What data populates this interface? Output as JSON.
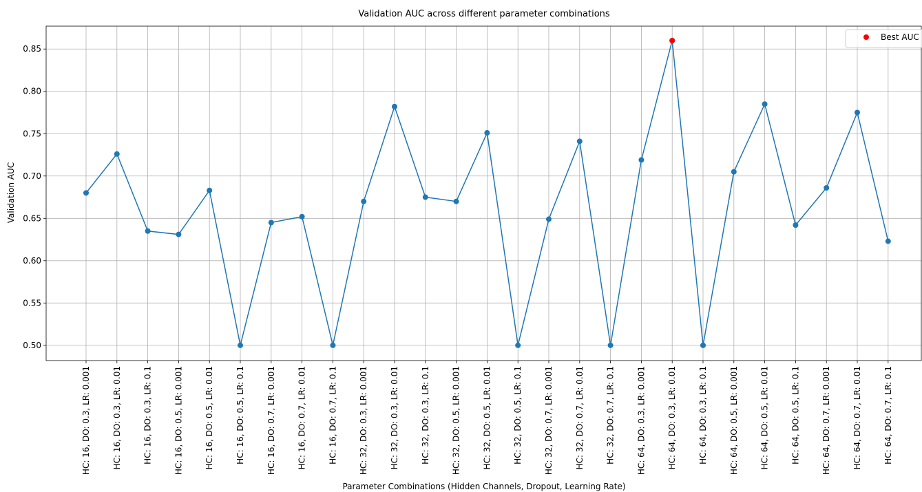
{
  "chart_data": {
    "type": "line",
    "title": "Validation AUC across different parameter combinations",
    "xlabel": "Parameter Combinations (Hidden Channels, Dropout, Learning Rate)",
    "ylabel": "Validation AUC",
    "categories": [
      "HC: 16, DO: 0.3, LR: 0.001",
      "HC: 16, DO: 0.3, LR: 0.01",
      "HC: 16, DO: 0.3, LR: 0.1",
      "HC: 16, DO: 0.5, LR: 0.001",
      "HC: 16, DO: 0.5, LR: 0.01",
      "HC: 16, DO: 0.5, LR: 0.1",
      "HC: 16, DO: 0.7, LR: 0.001",
      "HC: 16, DO: 0.7, LR: 0.01",
      "HC: 16, DO: 0.7, LR: 0.1",
      "HC: 32, DO: 0.3, LR: 0.001",
      "HC: 32, DO: 0.3, LR: 0.01",
      "HC: 32, DO: 0.3, LR: 0.1",
      "HC: 32, DO: 0.5, LR: 0.001",
      "HC: 32, DO: 0.5, LR: 0.01",
      "HC: 32, DO: 0.5, LR: 0.1",
      "HC: 32, DO: 0.7, LR: 0.001",
      "HC: 32, DO: 0.7, LR: 0.01",
      "HC: 32, DO: 0.7, LR: 0.1",
      "HC: 64, DO: 0.3, LR: 0.001",
      "HC: 64, DO: 0.3, LR: 0.01",
      "HC: 64, DO: 0.3, LR: 0.1",
      "HC: 64, DO: 0.5, LR: 0.001",
      "HC: 64, DO: 0.5, LR: 0.01",
      "HC: 64, DO: 0.5, LR: 0.1",
      "HC: 64, DO: 0.7, LR: 0.001",
      "HC: 64, DO: 0.7, LR: 0.01",
      "HC: 64, DO: 0.7, LR: 0.1"
    ],
    "series": [
      {
        "color": "#1f77b4",
        "mode": "line-marker",
        "values": [
          0.68,
          0.726,
          0.635,
          0.631,
          0.683,
          0.5,
          0.645,
          0.652,
          0.5,
          0.67,
          0.782,
          0.675,
          0.67,
          0.751,
          0.5,
          0.649,
          0.741,
          0.5,
          0.719,
          0.86,
          0.5,
          0.705,
          0.785,
          0.642,
          0.686,
          0.775,
          0.623
        ]
      },
      {
        "name": "Best AUC",
        "color": "#ff0000",
        "mode": "marker",
        "values": [
          null,
          null,
          null,
          null,
          null,
          null,
          null,
          null,
          null,
          null,
          null,
          null,
          null,
          null,
          null,
          null,
          null,
          null,
          null,
          0.86,
          null,
          null,
          null,
          null,
          null,
          null,
          null
        ]
      }
    ],
    "ylim": [
      0.482,
      0.877
    ],
    "yticks": [
      {
        "value": 0.5,
        "label": "0.50"
      },
      {
        "value": 0.55,
        "label": "0.55"
      },
      {
        "value": 0.6,
        "label": "0.60"
      },
      {
        "value": 0.65,
        "label": "0.65"
      },
      {
        "value": 0.7,
        "label": "0.70"
      },
      {
        "value": 0.75,
        "label": "0.75"
      },
      {
        "value": 0.8,
        "label": "0.80"
      },
      {
        "value": 0.85,
        "label": "0.85"
      }
    ],
    "grid": true,
    "legend": "upper right"
  }
}
